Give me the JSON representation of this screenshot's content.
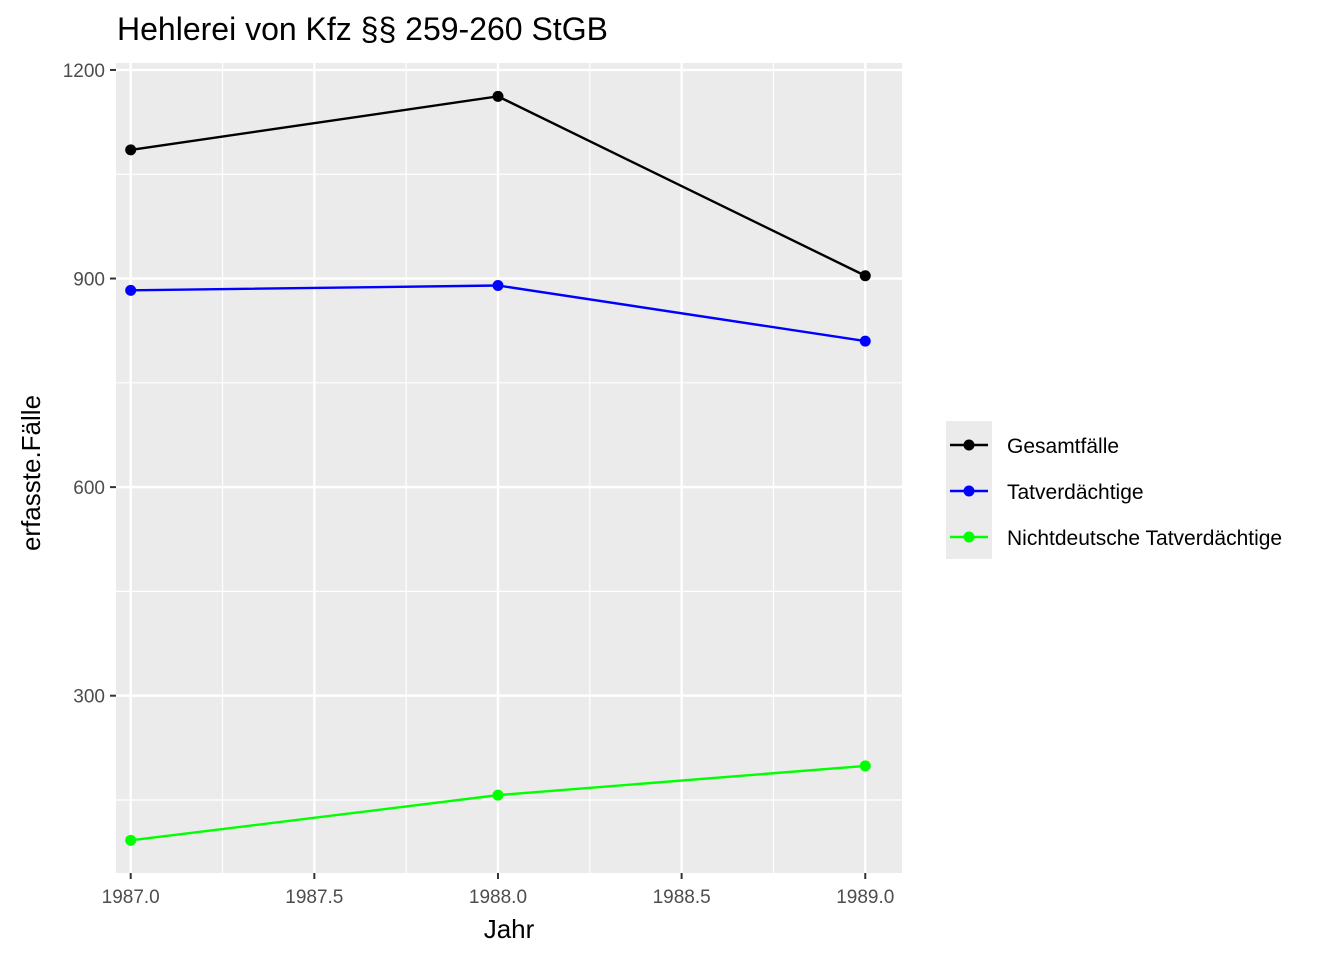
{
  "chart_data": {
    "type": "line",
    "title": "Hehlerei von Kfz §§ 259-260 StGB",
    "xlabel": "Jahr",
    "ylabel": "erfasste.Fälle",
    "x": [
      1987,
      1988,
      1989
    ],
    "xlim": [
      1986.96,
      1989.1
    ],
    "ylim": [
      45,
      1210
    ],
    "x_ticks": [
      "1987.0",
      "1987.5",
      "1988.0",
      "1988.5",
      "1989.0"
    ],
    "y_ticks": [
      "300",
      "600",
      "900",
      "1200"
    ],
    "grid": true,
    "legend_position": "right",
    "series": [
      {
        "name": "Gesamtfälle",
        "color": "#000000",
        "values": [
          1085,
          1162,
          904
        ]
      },
      {
        "name": "Tatverdächtige",
        "color": "#0000ff",
        "values": [
          883,
          890,
          810
        ]
      },
      {
        "name": "Nichtdeutsche Tatverdächtige",
        "color": "#00ff00",
        "values": [
          92,
          157,
          199
        ]
      }
    ]
  }
}
